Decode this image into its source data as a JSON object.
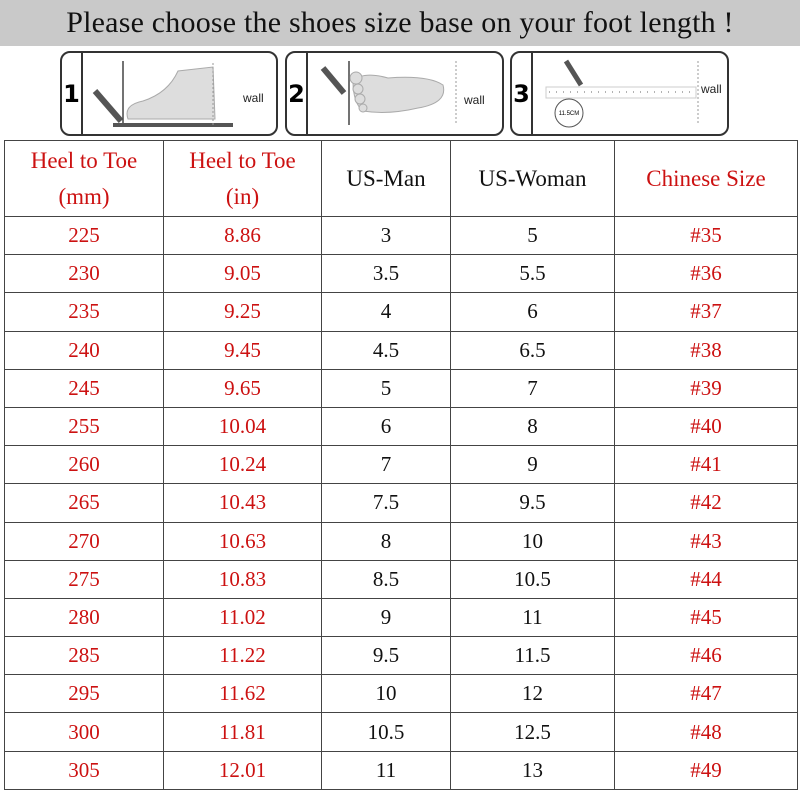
{
  "title": "Please choose the shoes size base on your foot length !",
  "steps": [
    {
      "number": "1",
      "wall_label": "wall",
      "icon": "foot-side-pencil-icon"
    },
    {
      "number": "2",
      "wall_label": "wall",
      "icon": "foot-top-pencil-icon"
    },
    {
      "number": "3",
      "wall_label": "wall",
      "icon": "ruler-measure-icon",
      "measure_label": "11.5CM"
    }
  ],
  "colors": {
    "accent_red": "#cc1111",
    "title_bar": "#c9c9c9"
  },
  "table": {
    "headers": [
      {
        "line1": "Heel to Toe",
        "line2": "(mm)"
      },
      {
        "line1": "Heel to Toe",
        "line2": "(in)"
      },
      {
        "line1": "US-Man",
        "line2": ""
      },
      {
        "line1": "US-Woman",
        "line2": ""
      },
      {
        "line1": "Chinese Size",
        "line2": ""
      }
    ],
    "rows": [
      [
        "225",
        "8.86",
        "3",
        "5",
        "#35"
      ],
      [
        "230",
        "9.05",
        "3.5",
        "5.5",
        "#36"
      ],
      [
        "235",
        "9.25",
        "4",
        "6",
        "#37"
      ],
      [
        "240",
        "9.45",
        "4.5",
        "6.5",
        "#38"
      ],
      [
        "245",
        "9.65",
        "5",
        "7",
        "#39"
      ],
      [
        "255",
        "10.04",
        "6",
        "8",
        "#40"
      ],
      [
        "260",
        "10.24",
        "7",
        "9",
        "#41"
      ],
      [
        "265",
        "10.43",
        "7.5",
        "9.5",
        "#42"
      ],
      [
        "270",
        "10.63",
        "8",
        "10",
        "#43"
      ],
      [
        "275",
        "10.83",
        "8.5",
        "10.5",
        "#44"
      ],
      [
        "280",
        "11.02",
        "9",
        "11",
        "#45"
      ],
      [
        "285",
        "11.22",
        "9.5",
        "11.5",
        "#46"
      ],
      [
        "295",
        "11.62",
        "10",
        "12",
        "#47"
      ],
      [
        "300",
        "11.81",
        "10.5",
        "12.5",
        "#48"
      ],
      [
        "305",
        "12.01",
        "11",
        "13",
        "#49"
      ]
    ]
  }
}
